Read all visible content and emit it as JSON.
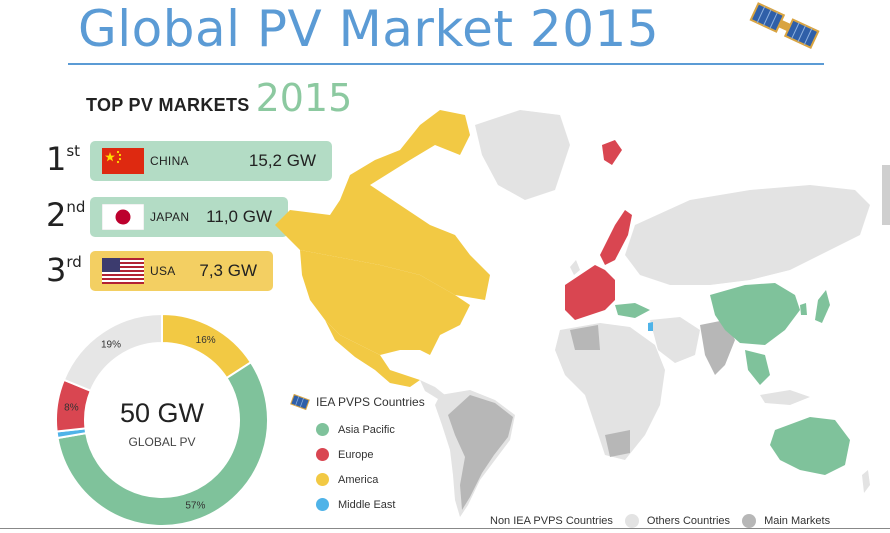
{
  "title": "Global PV Market 2015",
  "subtitle": {
    "main": "TOP PV MARKETS",
    "year": "2015"
  },
  "top_markets": [
    {
      "rank": "1",
      "suffix": "st",
      "country": "CHINA",
      "value": "15,2 GW",
      "flag_icon": "china-flag-icon",
      "color": "#b3dcc5"
    },
    {
      "rank": "2",
      "suffix": "nd",
      "country": "JAPAN",
      "value": "11,0 GW",
      "flag_icon": "japan-flag-icon",
      "color": "#b3dcc5"
    },
    {
      "rank": "3",
      "suffix": "rd",
      "country": "USA",
      "value": "7,3 GW",
      "flag_icon": "usa-flag-icon",
      "color": "#f3cf62"
    }
  ],
  "donut": {
    "center_value": "50 GW",
    "center_label": "GLOBAL PV"
  },
  "legend": {
    "title": "IEA PVPS Countries",
    "items": [
      {
        "label": "Asia Pacific",
        "color": "#7fc29b"
      },
      {
        "label": "Europe",
        "color": "#d94651"
      },
      {
        "label": "America",
        "color": "#f2c944"
      },
      {
        "label": "Middle East",
        "color": "#4fb3e8"
      }
    ]
  },
  "bottom_legend": {
    "label": "Non IEA PVPS Countries",
    "items": [
      {
        "label": "Others Countries",
        "color": "#e3e3e3"
      },
      {
        "label": "Main Markets",
        "color": "#b7b7b7"
      }
    ]
  },
  "chart_data": {
    "type": "pie",
    "categories": [
      "America",
      "Asia Pacific",
      "Middle East",
      "Europe",
      "Others"
    ],
    "values": [
      16,
      57,
      1,
      8,
      19
    ],
    "labels": [
      "16%",
      "57%",
      "",
      "8%",
      "19%"
    ],
    "colors": [
      "#f2c944",
      "#7fc29b",
      "#4fb3e8",
      "#d94651",
      "#e6e6e6"
    ]
  }
}
